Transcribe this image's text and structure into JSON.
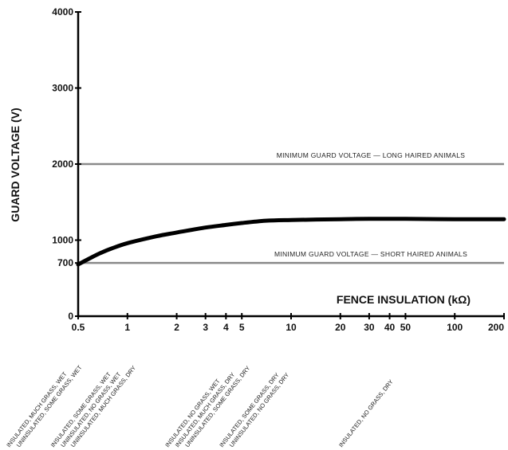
{
  "chart_data": {
    "type": "line",
    "title": "",
    "xlabel": "FENCE INSULATION (kΩ)",
    "ylabel": "GUARD VOLTAGE (V)",
    "x_scale": "log",
    "xlim": [
      0.5,
      200
    ],
    "ylim": [
      0,
      4000
    ],
    "x_ticks": [
      0.5,
      1,
      2,
      3,
      4,
      5,
      10,
      20,
      30,
      40,
      50,
      100,
      200
    ],
    "x_tick_labels": [
      "0.5",
      "1",
      "2",
      "3",
      "4",
      "5",
      "10",
      "20",
      "30",
      "40",
      "50",
      "100",
      "200"
    ],
    "y_ticks": [
      0,
      700,
      1000,
      2000,
      3000,
      4000
    ],
    "y_tick_labels": [
      "0",
      "700",
      "1000",
      "2000",
      "3000",
      "4000"
    ],
    "grid": false,
    "colors": {
      "curve": "#000000",
      "reference": "#8a8a8a",
      "axis": "#000000"
    },
    "series": [
      {
        "x": [
          0.5,
          0.6,
          0.7,
          0.8,
          1,
          1.5,
          2,
          3,
          4,
          5,
          7,
          10,
          20,
          30,
          50,
          100,
          200
        ],
        "y": [
          680,
          770,
          840,
          890,
          960,
          1050,
          1100,
          1165,
          1200,
          1225,
          1255,
          1265,
          1275,
          1280,
          1280,
          1275,
          1275
        ]
      }
    ],
    "reference_lines": [
      {
        "y": 2000,
        "label": "MINIMUM GUARD VOLTAGE — LONG HAIRED ANIMALS"
      },
      {
        "y": 700,
        "label": "MINIMUM GUARD VOLTAGE — SHORT HAIRED ANIMALS"
      }
    ],
    "annotations": [
      {
        "x": 0.5,
        "lines": [
          "INSULATED, MUCH GRASS, WET",
          "UNINSULATED, SOME GRASS, WET"
        ]
      },
      {
        "x": 1,
        "lines": [
          "INSULATED, SOME GRASS, WET",
          "UNINSULATED, NO GRASS, WET",
          "UNINSULATED, MUCH GRASS, DRY"
        ]
      },
      {
        "x": 5,
        "lines": [
          "INSULATED, NO GRASS, WET",
          "INSULATED, MUCH GRASS, DRY",
          "UNINSULATED, SOME GRASS, DRY"
        ]
      },
      {
        "x": 10,
        "lines": [
          "INSULATED, SOME GRASS, DRY",
          "UNINSULATED, NO GRASS, DRY"
        ]
      },
      {
        "x": 50,
        "lines": [
          "INSULATED, NO GRASS, DRY"
        ]
      }
    ]
  }
}
